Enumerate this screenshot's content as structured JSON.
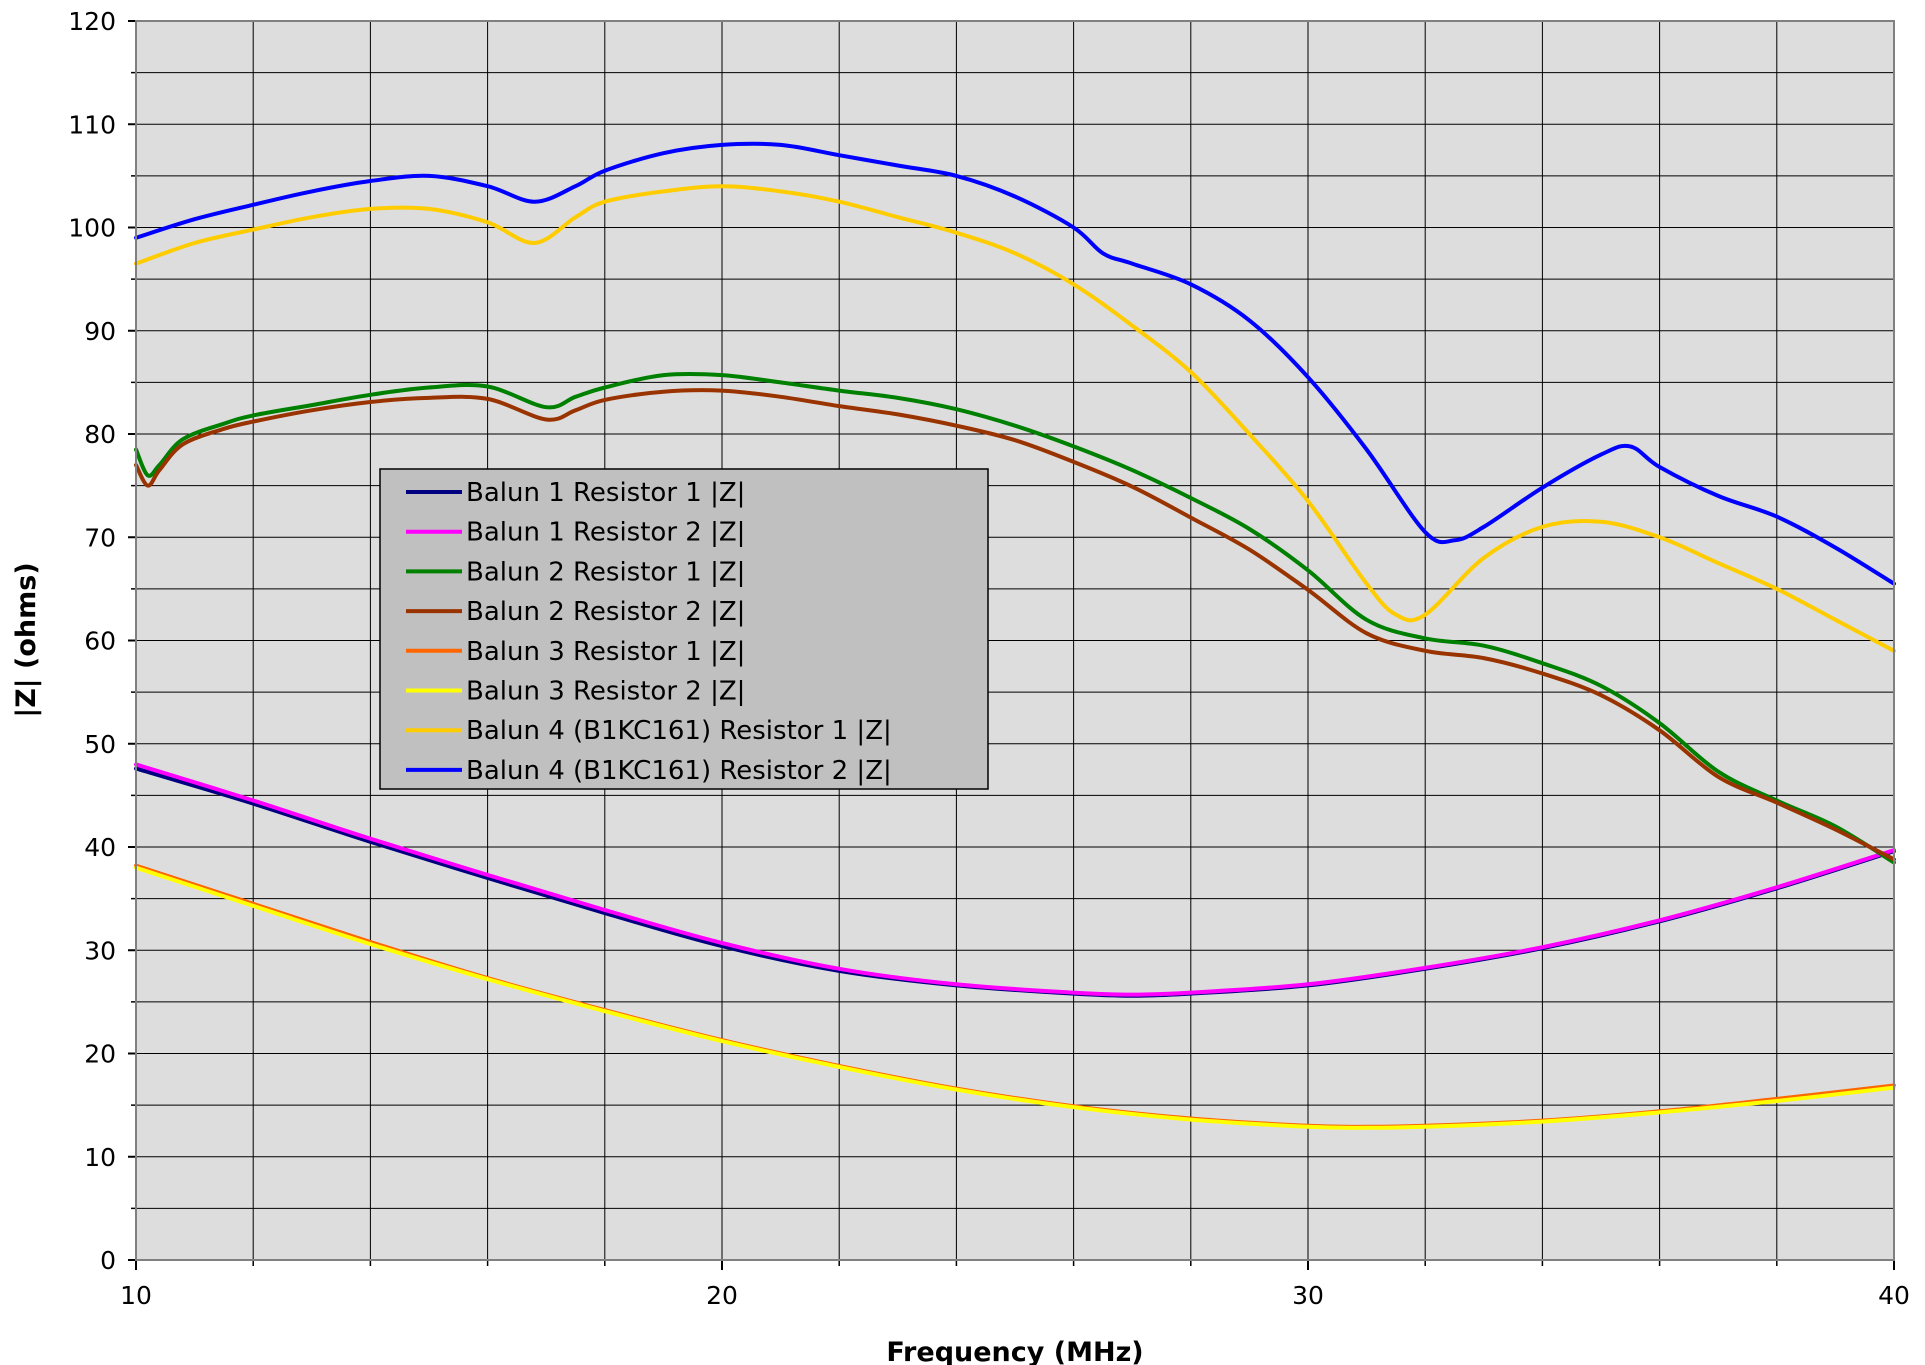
{
  "chart_data": {
    "type": "line",
    "xlabel": "Frequency (MHz)",
    "ylabel": "|Z| (ohms)",
    "xlim": [
      10,
      40
    ],
    "ylim": [
      0,
      120
    ],
    "x_ticks": [
      "10",
      "20",
      "30",
      "40"
    ],
    "y_ticks": [
      "0",
      "10",
      "20",
      "30",
      "40",
      "50",
      "60",
      "70",
      "80",
      "90",
      "100",
      "110",
      "120"
    ],
    "grid": true,
    "minor_x_gridlines": true,
    "minor_y_gridlines": true,
    "plot_background": "#DDDDDD",
    "legend_position": "center-left",
    "series": [
      {
        "name": "Balun 1 Resistor 1 |Z|",
        "color": "#000080",
        "x": [
          10,
          12,
          14,
          16,
          18,
          20,
          22,
          24,
          26,
          27,
          28,
          30,
          32,
          34,
          36,
          38,
          40
        ],
        "y": [
          47.6,
          44.2,
          40.5,
          37.0,
          33.6,
          30.4,
          28.0,
          26.6,
          25.8,
          25.6,
          25.8,
          26.6,
          28.2,
          30.2,
          32.8,
          36.0,
          39.6
        ]
      },
      {
        "name": "Balun 1 Resistor 2 |Z|",
        "color": "#FF00FF",
        "x": [
          10,
          12,
          14,
          16,
          18,
          20,
          22,
          24,
          26,
          27,
          28,
          30,
          32,
          34,
          36,
          38,
          40
        ],
        "y": [
          48.0,
          44.5,
          40.8,
          37.3,
          33.9,
          30.7,
          28.2,
          26.7,
          25.9,
          25.7,
          25.9,
          26.7,
          28.3,
          30.3,
          32.9,
          36.1,
          39.7
        ]
      },
      {
        "name": "Balun 2 Resistor 1 |Z|",
        "color": "#008000",
        "x": [
          10,
          10.2,
          10.4,
          10.8,
          11.5,
          12,
          13,
          14,
          15,
          16,
          17,
          17.5,
          18,
          19,
          20,
          21,
          22,
          23,
          24,
          25,
          26,
          27,
          28,
          29,
          30,
          31,
          32,
          33,
          34,
          35,
          36,
          37,
          38,
          39,
          40
        ],
        "y": [
          78.5,
          76.0,
          77.0,
          79.5,
          81.0,
          81.8,
          82.8,
          83.8,
          84.5,
          84.6,
          82.6,
          83.6,
          84.5,
          85.7,
          85.7,
          85.0,
          84.2,
          83.5,
          82.4,
          80.8,
          78.8,
          76.5,
          73.8,
          70.8,
          66.8,
          62.0,
          60.2,
          59.5,
          57.8,
          55.6,
          52.0,
          47.3,
          44.5,
          42.0,
          38.5
        ]
      },
      {
        "name": "Balun 2 Resistor 2 |Z|",
        "color": "#993300",
        "x": [
          10,
          10.2,
          10.4,
          10.8,
          11.5,
          12,
          13,
          14,
          15,
          16,
          17,
          17.5,
          18,
          19,
          20,
          21,
          22,
          23,
          24,
          25,
          26,
          27,
          28,
          29,
          30,
          31,
          32,
          33,
          34,
          35,
          36,
          37,
          38,
          39,
          40
        ],
        "y": [
          77.0,
          75.0,
          76.5,
          79.0,
          80.5,
          81.2,
          82.3,
          83.1,
          83.5,
          83.4,
          81.4,
          82.3,
          83.3,
          84.1,
          84.2,
          83.6,
          82.7,
          81.9,
          80.8,
          79.4,
          77.3,
          74.9,
          71.9,
          68.8,
          64.9,
          60.7,
          59.0,
          58.3,
          56.8,
          54.7,
          51.3,
          46.8,
          44.3,
          41.7,
          38.8
        ]
      },
      {
        "name": "Balun 3 Resistor 1 |Z|",
        "color": "#FF6600",
        "x": [
          10,
          12,
          14,
          16,
          18,
          20,
          22,
          24,
          26,
          28,
          30,
          31,
          32,
          34,
          36,
          38,
          40
        ],
        "y": [
          38.2,
          34.5,
          30.8,
          27.3,
          24.2,
          21.3,
          18.8,
          16.6,
          14.9,
          13.7,
          13.0,
          12.9,
          13.0,
          13.5,
          14.4,
          15.6,
          16.9
        ]
      },
      {
        "name": "Balun 3 Resistor 2 |Z|",
        "color": "#FFFF00",
        "x": [
          10,
          12,
          14,
          16,
          18,
          20,
          22,
          24,
          26,
          28,
          30,
          31,
          32,
          34,
          36,
          38,
          40
        ],
        "y": [
          38.0,
          34.3,
          30.6,
          27.2,
          24.1,
          21.2,
          18.7,
          16.5,
          14.8,
          13.6,
          12.9,
          12.8,
          12.9,
          13.4,
          14.3,
          15.4,
          16.7
        ]
      },
      {
        "name": "Balun 4 (B1KC161) Resistor 1 |Z|",
        "color": "#FFCC00",
        "x": [
          10,
          11,
          12,
          13,
          14,
          15,
          16,
          16.8,
          17.5,
          18,
          19,
          20,
          21,
          22,
          23,
          24,
          25,
          26,
          27,
          28,
          29,
          30,
          31,
          31.5,
          32,
          33,
          34,
          35,
          36,
          37,
          38,
          39,
          40
        ],
        "y": [
          96.5,
          98.5,
          99.8,
          101.0,
          101.8,
          101.8,
          100.5,
          98.5,
          101.0,
          102.5,
          103.5,
          104.0,
          103.5,
          102.5,
          101.0,
          99.5,
          97.5,
          94.5,
          90.5,
          86.0,
          80.0,
          73.5,
          65.5,
          62.5,
          62.5,
          68.0,
          71.0,
          71.5,
          70.0,
          67.5,
          65.0,
          62.0,
          59.0
        ]
      },
      {
        "name": "Balun 4 (B1KC161) Resistor 2 |Z|",
        "color": "#0000FF",
        "x": [
          10,
          11,
          12,
          13,
          14,
          15,
          16,
          16.8,
          17.5,
          18,
          19,
          20,
          21,
          22,
          23,
          24,
          25,
          26,
          26.5,
          27,
          28,
          29,
          30,
          31,
          32,
          32.5,
          33,
          34,
          35,
          35.5,
          36,
          37,
          38,
          39,
          40
        ],
        "y": [
          99.0,
          100.8,
          102.2,
          103.5,
          104.5,
          105.0,
          104.0,
          102.5,
          104.0,
          105.5,
          107.2,
          108.0,
          108.0,
          107.0,
          106.0,
          105.0,
          103.0,
          100.0,
          97.5,
          96.5,
          94.5,
          91.0,
          85.5,
          78.5,
          70.5,
          69.7,
          71.0,
          74.8,
          78.0,
          78.8,
          76.8,
          74.0,
          72.0,
          69.0,
          65.5
        ]
      }
    ]
  }
}
